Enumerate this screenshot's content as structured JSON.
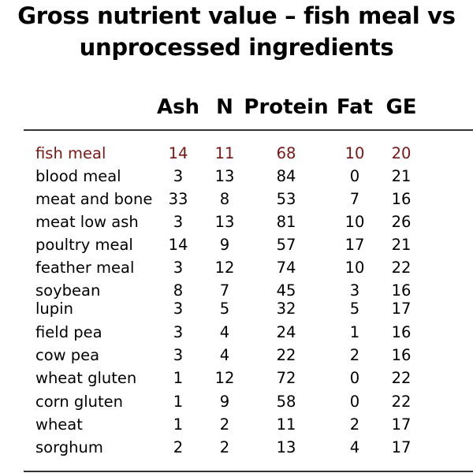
{
  "title": {
    "line1": "Gross nutrient value – fish meal vs",
    "line2": "unprocessed ingredients"
  },
  "table": {
    "columns": [
      "Ash",
      "N",
      "Protein",
      "Fat",
      "GE"
    ],
    "highlight_color": "#7a1515",
    "rows": [
      {
        "name": "fish meal",
        "values": [
          14,
          11,
          68,
          10,
          20
        ],
        "highlight": true
      },
      {
        "name": "blood meal",
        "values": [
          3,
          13,
          84,
          0,
          21
        ]
      },
      {
        "name": "meat and bone",
        "values": [
          33,
          8,
          53,
          7,
          16
        ]
      },
      {
        "name": "meat low ash",
        "values": [
          3,
          13,
          81,
          10,
          26
        ]
      },
      {
        "name": "poultry meal",
        "values": [
          14,
          9,
          57,
          17,
          21
        ]
      },
      {
        "name": "feather meal",
        "values": [
          3,
          12,
          74,
          10,
          22
        ]
      },
      {
        "name": "soybean",
        "values": [
          8,
          7,
          45,
          3,
          16
        ]
      },
      {
        "name": "lupin",
        "values": [
          3,
          5,
          32,
          5,
          17
        ]
      },
      {
        "name": "field pea",
        "values": [
          3,
          4,
          24,
          1,
          16
        ]
      },
      {
        "name": "cow pea",
        "values": [
          3,
          4,
          22,
          2,
          16
        ]
      },
      {
        "name": "wheat gluten",
        "values": [
          1,
          12,
          72,
          0,
          22
        ]
      },
      {
        "name": "corn gluten",
        "values": [
          1,
          9,
          58,
          0,
          22
        ]
      },
      {
        "name": "wheat",
        "values": [
          1,
          2,
          11,
          2,
          17
        ]
      },
      {
        "name": "sorghum",
        "values": [
          2,
          2,
          13,
          4,
          17
        ]
      }
    ]
  }
}
